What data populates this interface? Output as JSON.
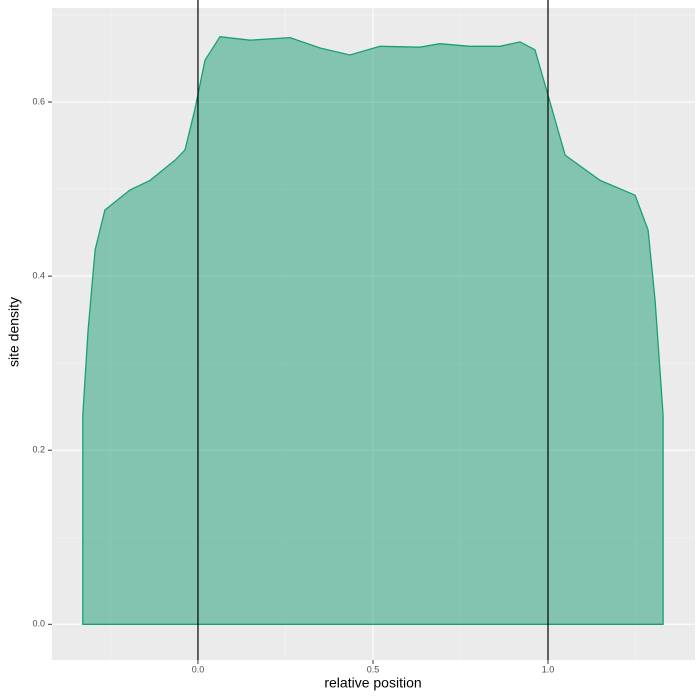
{
  "chart_data": {
    "type": "area",
    "x_label": "relative position",
    "y_label": "site density",
    "x": [
      -0.329,
      -0.329,
      -0.314,
      -0.294,
      -0.266,
      -0.194,
      -0.137,
      -0.066,
      -0.037,
      -0.009,
      0.02,
      0.063,
      0.149,
      0.263,
      0.349,
      0.434,
      0.52,
      0.634,
      0.691,
      0.777,
      0.863,
      0.92,
      0.963,
      1.0,
      1.049,
      1.149,
      1.249,
      1.286,
      1.306,
      1.329,
      1.329
    ],
    "values": [
      0,
      0.24,
      0.338,
      0.43,
      0.476,
      0.499,
      0.51,
      0.533,
      0.545,
      0.591,
      0.648,
      0.675,
      0.671,
      0.674,
      0.662,
      0.654,
      0.664,
      0.663,
      0.667,
      0.664,
      0.664,
      0.669,
      0.66,
      0.608,
      0.539,
      0.51,
      0.493,
      0.453,
      0.372,
      0.24,
      0
    ],
    "color": "#1b9e77",
    "vlines": [
      0,
      1
    ],
    "xlim": [
      -0.417,
      1.42
    ],
    "ylim": [
      -0.041,
      0.708
    ],
    "xticks": [
      {
        "value": 0,
        "label": "0.0"
      },
      0.5,
      {
        "value": 1,
        "label": "1.0"
      }
    ],
    "yticks": [
      {
        "value": 0,
        "label": "0.0"
      },
      0.2,
      0.4,
      0.6
    ],
    "grid": true
  }
}
